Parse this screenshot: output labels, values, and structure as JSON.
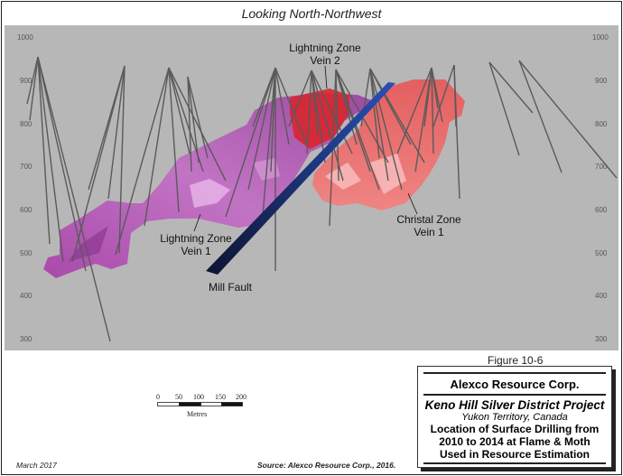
{
  "view_title": "Looking North-Northwest",
  "elevation_labels": [
    "1000",
    "900",
    "800",
    "700",
    "600",
    "500",
    "400",
    "300"
  ],
  "labels": {
    "lightning_vein2": [
      "Lightning Zone",
      "Vein 2"
    ],
    "lightning_vein1": [
      "Lightning Zone",
      "Vein 1"
    ],
    "christal_vein1": [
      "Christal Zone",
      "Vein 1"
    ],
    "mill_fault": "Mill Fault"
  },
  "colors": {
    "background": "#b7b7b7",
    "lightning_vein1": "#b65cb8",
    "lightning_vein2": "#d8262e",
    "christal_vein1": "#e6716f",
    "mill_fault": "#1b2a6e",
    "drillholes": "#5a5a5a"
  },
  "scale_bar": {
    "ticks": [
      "0",
      "50",
      "100",
      "150",
      "200"
    ],
    "unit": "Metres"
  },
  "figure_number": "Figure 10-6",
  "title_block": {
    "company": "Alexco Resource Corp.",
    "project": "Keno Hill Silver District Project",
    "location": "Yukon Territory, Canada",
    "description": [
      "Location of Surface Drilling from",
      "2010 to 2014 at Flame & Moth",
      "Used in Resource Estimation"
    ]
  },
  "footer": {
    "date": "March 2017",
    "source": "Source: Alexco Resource Corp., 2016."
  }
}
